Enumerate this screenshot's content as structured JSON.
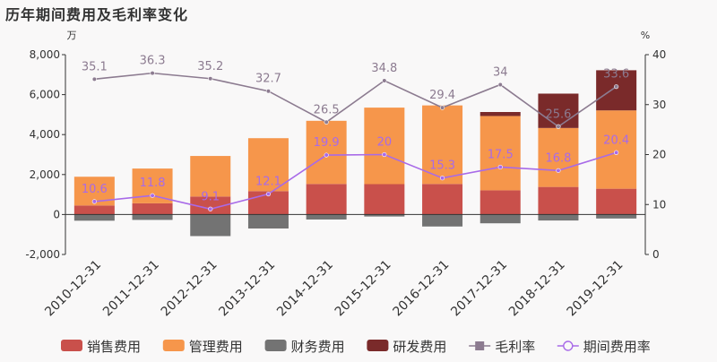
{
  "chart_data": {
    "type": "bar",
    "title": "历年期间费用及毛利率变化",
    "ylabel_left": "万",
    "ylabel_right": "%",
    "ylim_left": [
      -2000,
      8000
    ],
    "yticks_left": [
      -2000,
      0,
      2000,
      4000,
      6000,
      8000
    ],
    "ytick_labels_left": [
      "-2,000",
      "0",
      "2,000",
      "4,000",
      "6,000",
      "8,000"
    ],
    "ylim_right": [
      0,
      40
    ],
    "yticks_right": [
      0,
      10,
      20,
      30,
      40
    ],
    "ytick_labels_right": [
      "0",
      "10",
      "20",
      "30",
      "40"
    ],
    "categories": [
      "2010-12-31",
      "2011-12-31",
      "2012-12-31",
      "2013-12-31",
      "2014-12-31",
      "2015-12-31",
      "2016-12-31",
      "2017-12-31",
      "2018-12-31",
      "2019-12-31"
    ],
    "legend_position": "bottom",
    "series": [
      {
        "name": "销售费用",
        "kind": "bar",
        "axis": "left",
        "color": "#c9504b",
        "values": [
          450,
          560,
          900,
          1170,
          1530,
          1520,
          1530,
          1210,
          1380,
          1290
        ]
      },
      {
        "name": "管理费用",
        "kind": "bar",
        "axis": "left",
        "color": "#f6964b",
        "values": [
          1440,
          1740,
          2030,
          2650,
          3160,
          3830,
          3930,
          3720,
          2950,
          3920
        ]
      },
      {
        "name": "财务费用",
        "kind": "bar",
        "axis": "left",
        "color": "#737373",
        "values": [
          -310,
          -270,
          -1080,
          -700,
          -250,
          -100,
          -600,
          -440,
          -300,
          -200
        ]
      },
      {
        "name": "研发费用",
        "kind": "bar",
        "axis": "left",
        "color": "#7a2a2a",
        "values": [
          0,
          0,
          0,
          0,
          0,
          0,
          0,
          200,
          1720,
          2010
        ]
      },
      {
        "name": "毛利率",
        "kind": "line",
        "axis": "right",
        "color": "#8c7b90",
        "values": [
          35.1,
          36.3,
          35.2,
          32.7,
          26.5,
          34.8,
          29.4,
          34,
          25.6,
          33.6
        ],
        "labels": [
          "35.1",
          "36.3",
          "35.2",
          "32.7",
          "26.5",
          "34.8",
          "29.4",
          "34",
          "25.6",
          "33.6"
        ]
      },
      {
        "name": "期间费用率",
        "kind": "line",
        "axis": "right",
        "color": "#a86ae8",
        "values": [
          10.6,
          11.8,
          9.1,
          12.1,
          19.9,
          20,
          15.3,
          17.5,
          16.8,
          20.4
        ],
        "labels": [
          "10.6",
          "11.8",
          "9.1",
          "12.1",
          "19.9",
          "20",
          "15.3",
          "17.5",
          "16.8",
          "20.4"
        ]
      }
    ]
  }
}
